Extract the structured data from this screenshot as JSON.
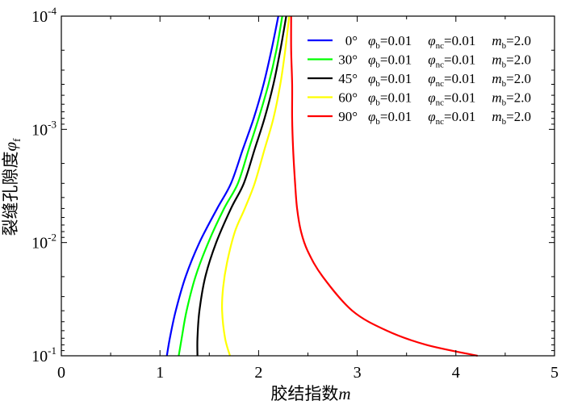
{
  "chart_data": {
    "type": "line",
    "xlabel": "胶结指数m",
    "xlabel_cn": "胶结指数",
    "xlabel_var": "m",
    "ylabel": "裂缝孔隙度φf",
    "ylabel_cn": "裂缝孔隙度",
    "ylabel_var": "φ",
    "ylabel_sub": "f",
    "xlim": [
      0,
      5
    ],
    "ylim": [
      0.1,
      0.0001
    ],
    "y_scale": "log",
    "y_inverted": true,
    "grid": false,
    "legend_position": "top-right",
    "x_ticks": [
      0,
      1,
      2,
      3,
      4,
      5
    ],
    "y_ticks": [
      {
        "value": 0.0001,
        "base": "10",
        "exp": "-4"
      },
      {
        "value": 0.001,
        "base": "10",
        "exp": "-3"
      },
      {
        "value": 0.01,
        "base": "10",
        "exp": "-2"
      },
      {
        "value": 0.1,
        "base": "10",
        "exp": "-1"
      }
    ],
    "legend_params": {
      "phi_b": "φ",
      "phi_b_sub": "b",
      "phi_b_val": "=0.01",
      "phi_nc": "φ",
      "phi_nc_sub": "nc",
      "phi_nc_val": "=0.01",
      "m_b": "m",
      "m_b_sub": "b",
      "m_b_val": "=2.0"
    },
    "series": [
      {
        "name": "0°",
        "color": "#0000ff",
        "points": [
          [
            1.07,
            0.1
          ],
          [
            1.1,
            0.07
          ],
          [
            1.16,
            0.04
          ],
          [
            1.26,
            0.02
          ],
          [
            1.4,
            0.01
          ],
          [
            1.58,
            0.005
          ],
          [
            1.72,
            0.003
          ],
          [
            1.84,
            0.0015
          ],
          [
            1.95,
            0.0008
          ],
          [
            2.05,
            0.0004
          ],
          [
            2.13,
            0.0002
          ],
          [
            2.2,
            0.0001
          ]
        ]
      },
      {
        "name": "30°",
        "color": "#00ff00",
        "points": [
          [
            1.19,
            0.1
          ],
          [
            1.22,
            0.07
          ],
          [
            1.27,
            0.04
          ],
          [
            1.36,
            0.02
          ],
          [
            1.49,
            0.01
          ],
          [
            1.65,
            0.005
          ],
          [
            1.79,
            0.003
          ],
          [
            1.9,
            0.0015
          ],
          [
            2.0,
            0.0008
          ],
          [
            2.1,
            0.0004
          ],
          [
            2.18,
            0.0002
          ],
          [
            2.24,
            0.0001
          ]
        ]
      },
      {
        "name": "45°",
        "color": "#000000",
        "points": [
          [
            1.38,
            0.1
          ],
          [
            1.38,
            0.07
          ],
          [
            1.4,
            0.04
          ],
          [
            1.46,
            0.02
          ],
          [
            1.57,
            0.01
          ],
          [
            1.72,
            0.005
          ],
          [
            1.85,
            0.003
          ],
          [
            1.96,
            0.0015
          ],
          [
            2.06,
            0.0008
          ],
          [
            2.15,
            0.0004
          ],
          [
            2.22,
            0.0002
          ],
          [
            2.28,
            0.0001
          ]
        ]
      },
      {
        "name": "60°",
        "color": "#ffff00",
        "points": [
          [
            1.71,
            0.1
          ],
          [
            1.66,
            0.07
          ],
          [
            1.63,
            0.04
          ],
          [
            1.64,
            0.025
          ],
          [
            1.68,
            0.015
          ],
          [
            1.76,
            0.008
          ],
          [
            1.86,
            0.005
          ],
          [
            1.96,
            0.003
          ],
          [
            2.06,
            0.0015
          ],
          [
            2.15,
            0.0008
          ],
          [
            2.22,
            0.0004
          ],
          [
            2.27,
            0.0002
          ],
          [
            2.31,
            0.0001
          ]
        ]
      },
      {
        "name": "90°",
        "color": "#ff0000",
        "points": [
          [
            4.22,
            0.1
          ],
          [
            3.7,
            0.08
          ],
          [
            3.3,
            0.06
          ],
          [
            2.95,
            0.04
          ],
          [
            2.65,
            0.02
          ],
          [
            2.5,
            0.012
          ],
          [
            2.43,
            0.008
          ],
          [
            2.39,
            0.005
          ],
          [
            2.37,
            0.003
          ],
          [
            2.35,
            0.0015
          ],
          [
            2.34,
            0.0008
          ],
          [
            2.34,
            0.0004
          ],
          [
            2.33,
            0.0002
          ],
          [
            2.33,
            0.0001
          ]
        ]
      }
    ]
  }
}
